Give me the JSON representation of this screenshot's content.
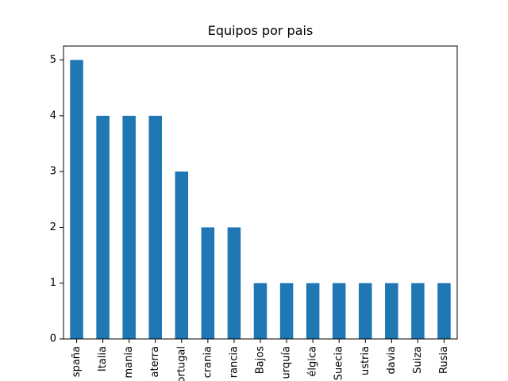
{
  "chart_data": {
    "type": "bar",
    "title": "Equipos por pais",
    "categories": [
      "spaña",
      "Italia",
      "mania",
      "aterra",
      "ortugal",
      "crania",
      "rancia",
      "Bajos",
      "urquía",
      "élgica",
      "Suecia",
      "ustria",
      "davia",
      "Suiza",
      "Rusia"
    ],
    "values": [
      5,
      4,
      4,
      4,
      3,
      2,
      2,
      1,
      1,
      1,
      1,
      1,
      1,
      1,
      1
    ],
    "color": "#1f77b4",
    "ylim": [
      0,
      5.25
    ],
    "yticks": [
      0,
      1,
      2,
      3,
      4,
      5
    ],
    "grid": false
  }
}
